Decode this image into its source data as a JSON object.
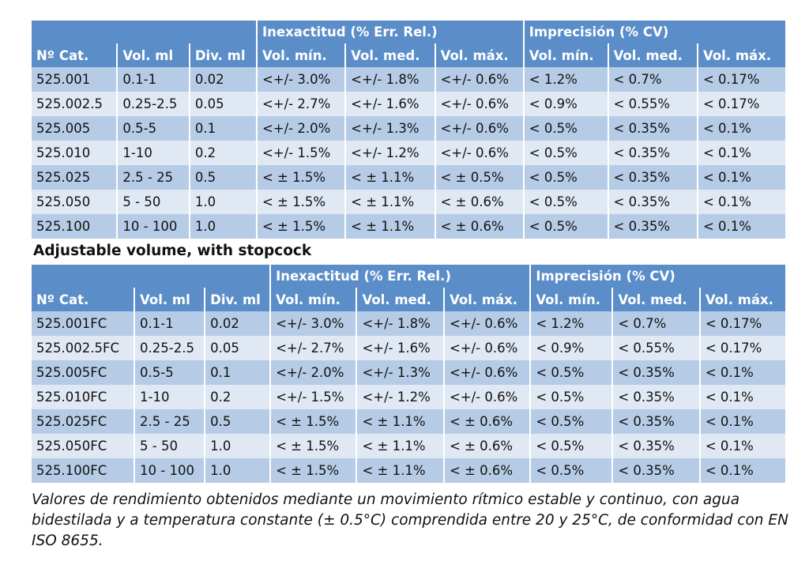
{
  "tables": [
    {
      "headers": {
        "group_inexactitud": "Inexactitud (% Err. Rel.)",
        "group_imprecision": "Imprecisión (% CV)",
        "columns": [
          "Nº Cat.",
          "Vol. ml",
          "Div. ml",
          "Vol. mín.",
          "Vol. med.",
          "Vol. máx.",
          "Vol. mín.",
          "Vol. med.",
          "Vol. máx."
        ]
      },
      "rows": [
        [
          "525.001",
          "0.1-1",
          "0.02",
          "<+/- 3.0%",
          "<+/- 1.8%",
          "<+/- 0.6%",
          "< 1.2%",
          "< 0.7%",
          "< 0.17%"
        ],
        [
          "525.002.5",
          "0.25-2.5",
          "0.05",
          "<+/- 2.7%",
          "<+/- 1.6%",
          "<+/- 0.6%",
          "< 0.9%",
          "< 0.55%",
          "< 0.17%"
        ],
        [
          "525.005",
          "0.5-5",
          "0.1",
          "<+/- 2.0%",
          "<+/- 1.3%",
          "<+/- 0.6%",
          "< 0.5%",
          "< 0.35%",
          "< 0.1%"
        ],
        [
          "525.010",
          "1-10",
          "0.2",
          "<+/- 1.5%",
          "<+/- 1.2%",
          "<+/- 0.6%",
          "< 0.5%",
          "< 0.35%",
          "< 0.1%"
        ],
        [
          "525.025",
          "2.5 - 25",
          "0.5",
          "< ± 1.5%",
          "< ± 1.1%",
          "< ± 0.5%",
          "< 0.5%",
          "< 0.35%",
          "< 0.1%"
        ],
        [
          "525.050",
          "5 - 50",
          "1.0",
          "< ± 1.5%",
          "< ± 1.1%",
          "< ± 0.6%",
          "< 0.5%",
          "< 0.35%",
          "< 0.1%"
        ],
        [
          "525.100",
          "10 - 100",
          "1.0",
          "< ± 1.5%",
          "< ± 1.1%",
          "< ± 0.6%",
          "< 0.5%",
          "< 0.35%",
          "< 0.1%"
        ]
      ]
    },
    {
      "headers": {
        "group_inexactitud": "Inexactitud (% Err. Rel.)",
        "group_imprecision": "Imprecisión (% CV)",
        "columns": [
          "Nº Cat.",
          "Vol. ml",
          "Div. ml",
          "Vol. mín.",
          "Vol. med.",
          "Vol. máx.",
          "Vol. mín.",
          "Vol. med.",
          "Vol. máx."
        ]
      },
      "rows": [
        [
          "525.001FC",
          "0.1-1",
          "0.02",
          "<+/- 3.0%",
          "<+/- 1.8%",
          "<+/- 0.6%",
          "< 1.2%",
          "< 0.7%",
          "< 0.17%"
        ],
        [
          "525.002.5FC",
          "0.25-2.5",
          "0.05",
          "<+/- 2.7%",
          "<+/- 1.6%",
          "<+/- 0.6%",
          "< 0.9%",
          "< 0.55%",
          "< 0.17%"
        ],
        [
          "525.005FC",
          "0.5-5",
          "0.1",
          "<+/- 2.0%",
          "<+/- 1.3%",
          "<+/- 0.6%",
          "< 0.5%",
          "< 0.35%",
          "< 0.1%"
        ],
        [
          "525.010FC",
          "1-10",
          "0.2",
          "<+/- 1.5%",
          "<+/- 1.2%",
          "<+/- 0.6%",
          "< 0.5%",
          "< 0.35%",
          "< 0.1%"
        ],
        [
          "525.025FC",
          "2.5 - 25",
          "0.5",
          "< ± 1.5%",
          "< ± 1.1%",
          "< ± 0.6%",
          "< 0.5%",
          "< 0.35%",
          "< 0.1%"
        ],
        [
          "525.050FC",
          "5 - 50",
          "1.0",
          "< ± 1.5%",
          "< ± 1.1%",
          "< ± 0.6%",
          "< 0.5%",
          "< 0.35%",
          "< 0.1%"
        ],
        [
          "525.100FC",
          "10 - 100",
          "1.0",
          "< ± 1.5%",
          "< ± 1.1%",
          "< ± 0.6%",
          "< 0.5%",
          "< 0.35%",
          "< 0.1%"
        ]
      ]
    }
  ],
  "section_caption": "Adjustable volume, with stopcock",
  "footnote": "Valores de rendimiento obtenidos mediante un movimiento rítmico estable y continuo, con agua bidestilada y a temperatura constante (± 0.5°C) comprendida entre 20 y 25°C, de conformidad con EN ISO 8655.",
  "colors": {
    "header_blue": "#5b8ec9",
    "row_dark": "#b6cce6",
    "row_light": "#dfe8f3"
  }
}
